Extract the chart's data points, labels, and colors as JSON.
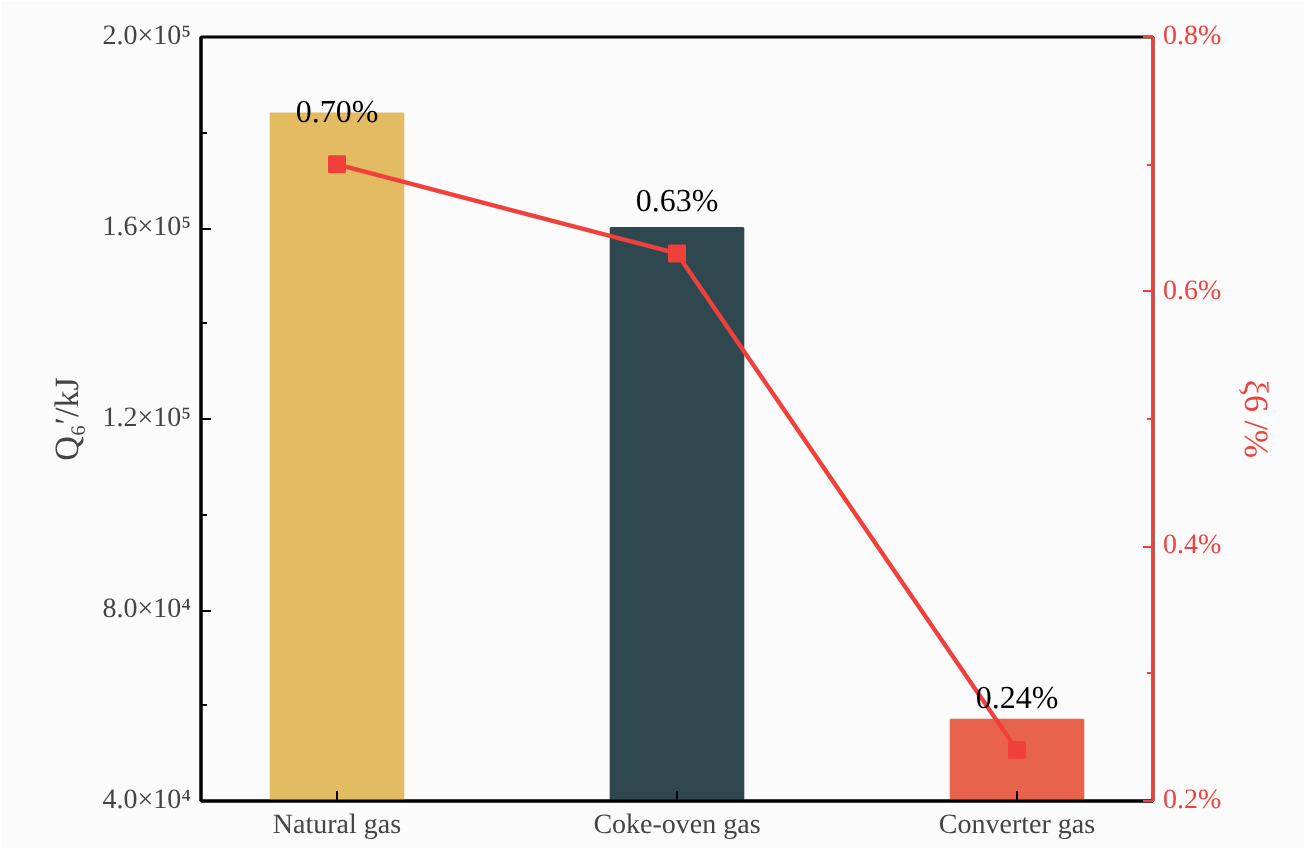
{
  "chart_data": {
    "type": "bar",
    "categories": [
      "Natural gas",
      "Coke-oven gas",
      "Converter gas"
    ],
    "ylabel": "Q₆′/kJ",
    "y2label": "ξ6 /%",
    "ylim": [
      40000,
      200000
    ],
    "yticks": [
      {
        "value": 40000,
        "label": "4.0×10⁴"
      },
      {
        "value": 80000,
        "label": "8.0×10⁴"
      },
      {
        "value": 120000,
        "label": "1.2×10⁵"
      },
      {
        "value": 160000,
        "label": "1.6×10⁵"
      },
      {
        "value": 200000,
        "label": "2.0×10⁵"
      }
    ],
    "y2lim": [
      0.2,
      0.8
    ],
    "y2ticks": [
      {
        "value": 0.2,
        "label": "0.2%"
      },
      {
        "value": 0.4,
        "label": "0.4%"
      },
      {
        "value": 0.6,
        "label": "0.6%"
      },
      {
        "value": 0.8,
        "label": "0.8%"
      }
    ],
    "grid": false,
    "series": [
      {
        "colors": [
          "#e3bb62",
          "#2f4850",
          "#e8634c"
        ],
        "values": [
          184000,
          160000,
          57000
        ]
      },
      {
        "type": "line",
        "axis": "y2",
        "color": "#f0403c",
        "marker": "square",
        "line_style": "solid",
        "values": [
          0.7,
          0.63,
          0.24
        ],
        "value_labels": [
          "0.70%",
          "0.63%",
          "0.24%"
        ]
      }
    ]
  }
}
